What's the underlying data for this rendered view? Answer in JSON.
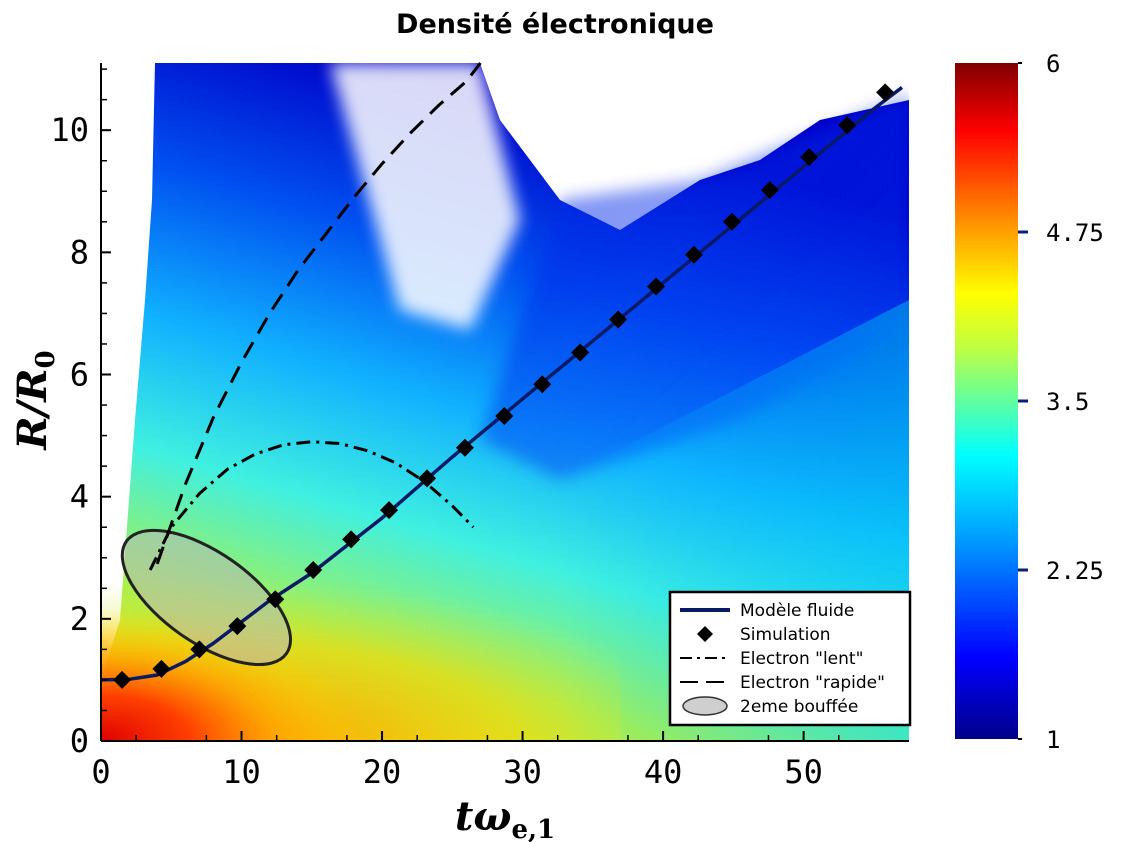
{
  "chart_data": {
    "type": "heatmap",
    "title": "Densité électronique",
    "xlabel": {
      "main": "tω",
      "sub": "e,1"
    },
    "ylabel": {
      "main": "R/R",
      "sub": "0"
    },
    "xlim": [
      0,
      57.5
    ],
    "ylim": [
      0,
      11.1
    ],
    "xticks": [
      0,
      10,
      20,
      30,
      40,
      50
    ],
    "yticks": [
      0,
      2,
      4,
      6,
      8,
      10
    ],
    "colorbar": {
      "range": [
        1,
        6
      ],
      "ticks": [
        "1",
        "2.25",
        "3.5",
        "4.75",
        "6"
      ],
      "colors": [
        "#00008a",
        "#0000ff",
        "#00a0ff",
        "#00ffff",
        "#ffff00",
        "#ff8000",
        "#ff0000",
        "#800000"
      ]
    },
    "series": [
      {
        "name": "Modèle fluide",
        "style": "solid",
        "color": "#0b1a66",
        "x": [
          0,
          2,
          4,
          6,
          8,
          10,
          12,
          15,
          20,
          25,
          30,
          35,
          40,
          45,
          50,
          55,
          57
        ],
        "y": [
          1.0,
          1.01,
          1.08,
          1.3,
          1.6,
          1.95,
          2.3,
          2.75,
          3.65,
          4.65,
          5.6,
          6.55,
          7.5,
          8.45,
          9.4,
          10.35,
          10.7
        ]
      },
      {
        "name": "Simulation",
        "style": "marker",
        "color": "#000000",
        "x": [
          1.5,
          4.3,
          7.0,
          9.7,
          12.4,
          15.1,
          17.8,
          20.5,
          23.2,
          25.9,
          28.7,
          31.4,
          34.1,
          36.8,
          39.5,
          42.2,
          44.9,
          47.6,
          50.4,
          53.1,
          55.8
        ],
        "y": [
          1.0,
          1.18,
          1.5,
          1.88,
          2.32,
          2.8,
          3.3,
          3.78,
          4.3,
          4.8,
          5.32,
          5.84,
          6.36,
          6.9,
          7.44,
          7.96,
          8.5,
          9.02,
          9.56,
          10.08,
          10.62
        ]
      },
      {
        "name": "Electron \"lent\"",
        "style": "dash-dot",
        "color": "#000000",
        "x": [
          3.5,
          5,
          7,
          9,
          11,
          13,
          15,
          17,
          19,
          21,
          23,
          25,
          26.5
        ],
        "y": [
          2.8,
          3.5,
          4.05,
          4.45,
          4.7,
          4.85,
          4.9,
          4.87,
          4.75,
          4.55,
          4.25,
          3.85,
          3.5
        ]
      },
      {
        "name": "Electron \"rapide\"",
        "style": "dashed",
        "color": "#000000",
        "x": [
          4,
          6,
          8,
          10,
          12,
          14,
          16,
          18,
          20,
          22,
          24,
          26,
          27
        ],
        "y": [
          2.9,
          4.2,
          5.3,
          6.2,
          7.0,
          7.7,
          8.3,
          8.9,
          9.45,
          9.95,
          10.4,
          10.8,
          11.1
        ]
      },
      {
        "name": "2eme bouffée",
        "style": "ellipse",
        "color": "#a9a9a9",
        "center": [
          7.5,
          2.35
        ],
        "rx": 3.2,
        "ry": 1.6,
        "angle_deg": 55
      }
    ],
    "legend": {
      "position": "bottom-right",
      "entries": [
        "Modèle fluide",
        "Simulation",
        "Electron \"lent\"",
        "Electron \"rapide\"",
        "2eme bouffée"
      ]
    }
  }
}
